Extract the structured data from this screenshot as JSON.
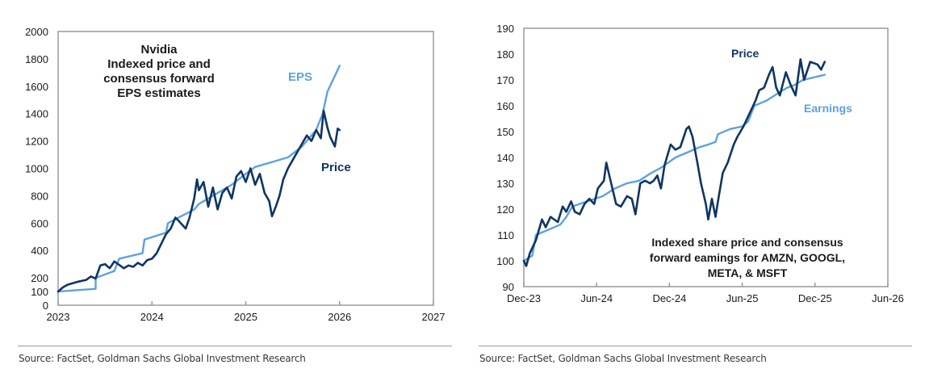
{
  "colors": {
    "price": "#0f3562",
    "eps": "#5ca2e0",
    "axis": "#9a9a9a",
    "text": "#1a1a1a"
  },
  "chart_data": [
    {
      "type": "line",
      "title": "Nvidia Indexed price and consensus forward EPS estimates",
      "title_lines": [
        "Nvidia",
        "Indexed price and",
        "consensus forward",
        "EPS estimates"
      ],
      "xlabel": "",
      "ylabel": "",
      "xlim": [
        2023,
        2027
      ],
      "ylim": [
        0,
        2000
      ],
      "x_ticks": [
        2023,
        2024,
        2025,
        2026,
        2027
      ],
      "x_tick_labels": [
        "2023",
        "2024",
        "2025",
        "2026",
        "2027"
      ],
      "y_ticks": [
        0,
        100,
        200,
        400,
        600,
        800,
        1000,
        1200,
        1400,
        1600,
        1800,
        2000
      ],
      "y_tick_labels": [
        "0",
        "100",
        "200",
        "400",
        "600",
        "800",
        "1000",
        "1200",
        "1400",
        "1600",
        "1800",
        "2000"
      ],
      "grid": false,
      "series": [
        {
          "name": "EPS",
          "label": "EPS",
          "color_key": "eps",
          "x": [
            2023.0,
            2023.4,
            2023.4,
            2023.6,
            2023.65,
            2023.9,
            2023.92,
            2024.15,
            2024.17,
            2024.45,
            2024.5,
            2024.85,
            2025.0,
            2025.1,
            2025.3,
            2025.45,
            2025.6,
            2025.75,
            2025.82,
            2025.87,
            2026.0
          ],
          "y": [
            100,
            120,
            200,
            250,
            340,
            380,
            480,
            530,
            600,
            700,
            740,
            880,
            960,
            1010,
            1050,
            1080,
            1160,
            1280,
            1400,
            1560,
            1750
          ]
        },
        {
          "name": "Price",
          "label": "Price",
          "color_key": "price",
          "x": [
            2023.0,
            2023.05,
            2023.1,
            2023.2,
            2023.3,
            2023.35,
            2023.4,
            2023.45,
            2023.5,
            2023.55,
            2023.6,
            2023.65,
            2023.7,
            2023.75,
            2023.8,
            2023.85,
            2023.9,
            2023.95,
            2024.0,
            2024.05,
            2024.1,
            2024.15,
            2024.2,
            2024.25,
            2024.28,
            2024.32,
            2024.36,
            2024.4,
            2024.45,
            2024.48,
            2024.5,
            2024.55,
            2024.6,
            2024.65,
            2024.7,
            2024.75,
            2024.8,
            2024.85,
            2024.9,
            2024.95,
            2025.0,
            2025.05,
            2025.1,
            2025.15,
            2025.2,
            2025.25,
            2025.28,
            2025.32,
            2025.36,
            2025.4,
            2025.45,
            2025.5,
            2025.55,
            2025.6,
            2025.65,
            2025.7,
            2025.75,
            2025.8,
            2025.83,
            2025.87,
            2025.9,
            2025.95,
            2025.98,
            2026.0
          ],
          "y": [
            100,
            130,
            150,
            170,
            185,
            210,
            195,
            290,
            300,
            270,
            320,
            295,
            270,
            290,
            280,
            310,
            290,
            330,
            340,
            380,
            450,
            520,
            560,
            640,
            620,
            590,
            560,
            640,
            780,
            920,
            840,
            900,
            720,
            860,
            700,
            820,
            860,
            780,
            940,
            980,
            900,
            1000,
            880,
            960,
            820,
            760,
            650,
            720,
            800,
            920,
            1000,
            1060,
            1120,
            1180,
            1240,
            1200,
            1280,
            1220,
            1420,
            1300,
            1230,
            1160,
            1290,
            1280
          ]
        }
      ],
      "annotations": [
        "EPS",
        "Price"
      ]
    },
    {
      "type": "line",
      "title": "Indexed share price and consensus forward eamings for AMZN, GOOGL, META, & MSFT",
      "title_lines": [
        "Indexed share price and consensus",
        "forward eamings for AMZN, GOOGL,",
        "META, & MSFT"
      ],
      "xlabel": "",
      "ylabel": "",
      "x_unit": "months since Dec-23",
      "xlim": [
        0,
        30
      ],
      "ylim": [
        90,
        190
      ],
      "x_ticks": [
        0,
        6,
        12,
        18,
        24,
        30
      ],
      "x_tick_labels": [
        "Dec-23",
        "Jun-24",
        "Dec-24",
        "Jun-25",
        "Dec-25",
        "Jun-26"
      ],
      "y_ticks": [
        90,
        100,
        110,
        120,
        130,
        140,
        150,
        160,
        170,
        180,
        190
      ],
      "y_tick_labels": [
        "90",
        "100",
        "110",
        "120",
        "130",
        "140",
        "150",
        "160",
        "170",
        "180",
        "190"
      ],
      "grid": false,
      "series": [
        {
          "name": "Earnings",
          "label": "Earnings",
          "color_key": "eps",
          "x": [
            0,
            0.7,
            1,
            2,
            3,
            3.5,
            4,
            5.2,
            6.5,
            7.5,
            8.5,
            9.5,
            10.5,
            11.3,
            12.5,
            13.5,
            14.5,
            15.2,
            15.8,
            16,
            17,
            18,
            18.5,
            19,
            20,
            21,
            21.7,
            22.3,
            23,
            24.8
          ],
          "y": [
            100,
            102,
            110,
            112,
            114,
            117,
            121,
            123,
            125,
            128,
            130,
            131,
            134,
            136,
            140,
            142,
            144,
            145,
            146,
            149,
            151,
            152,
            154,
            160,
            162,
            165,
            167,
            168,
            170,
            172
          ]
        },
        {
          "name": "Price",
          "label": "Price",
          "color_key": "price",
          "x": [
            0,
            0.2,
            0.5,
            1,
            1.5,
            1.8,
            2.2,
            2.8,
            3.2,
            3.5,
            3.9,
            4.2,
            4.6,
            5,
            5.4,
            5.8,
            6.1,
            6.6,
            6.8,
            7.2,
            7.6,
            8,
            8.5,
            8.9,
            9.2,
            9.6,
            10,
            10.4,
            10.7,
            11,
            11.3,
            11.6,
            12.1,
            12.5,
            12.9,
            13.4,
            13.6,
            13.9,
            14.3,
            14.6,
            15,
            15.2,
            15.5,
            15.8,
            16,
            16.4,
            16.8,
            17.3,
            17.6,
            18.1,
            18.5,
            18.8,
            19.1,
            19.4,
            19.8,
            20.2,
            20.5,
            20.8,
            21.1,
            21.6,
            22,
            22.4,
            22.8,
            23.1,
            23.6,
            24.2,
            24.5,
            24.8
          ],
          "y": [
            100,
            98,
            103,
            108,
            116,
            113,
            117,
            115,
            121,
            119,
            123,
            119,
            118,
            122,
            124,
            122,
            128,
            131,
            138,
            130,
            122,
            121,
            125,
            124,
            118,
            130,
            131,
            130,
            131,
            133,
            128,
            137,
            145,
            143,
            144,
            151,
            152,
            148,
            138,
            130,
            122,
            116,
            124,
            117,
            123,
            134,
            138,
            145,
            148,
            152,
            156,
            159,
            162,
            166,
            167,
            172,
            175,
            167,
            164,
            173,
            168,
            164,
            178,
            170,
            177,
            176,
            174,
            177
          ]
        }
      ],
      "annotations": [
        "Price",
        "Earnings"
      ]
    }
  ],
  "sources": [
    "Source: FactSet, Goldman Sachs Global Investment Research",
    "Source: FactSet, Goldman Sachs Global Investment Research"
  ]
}
